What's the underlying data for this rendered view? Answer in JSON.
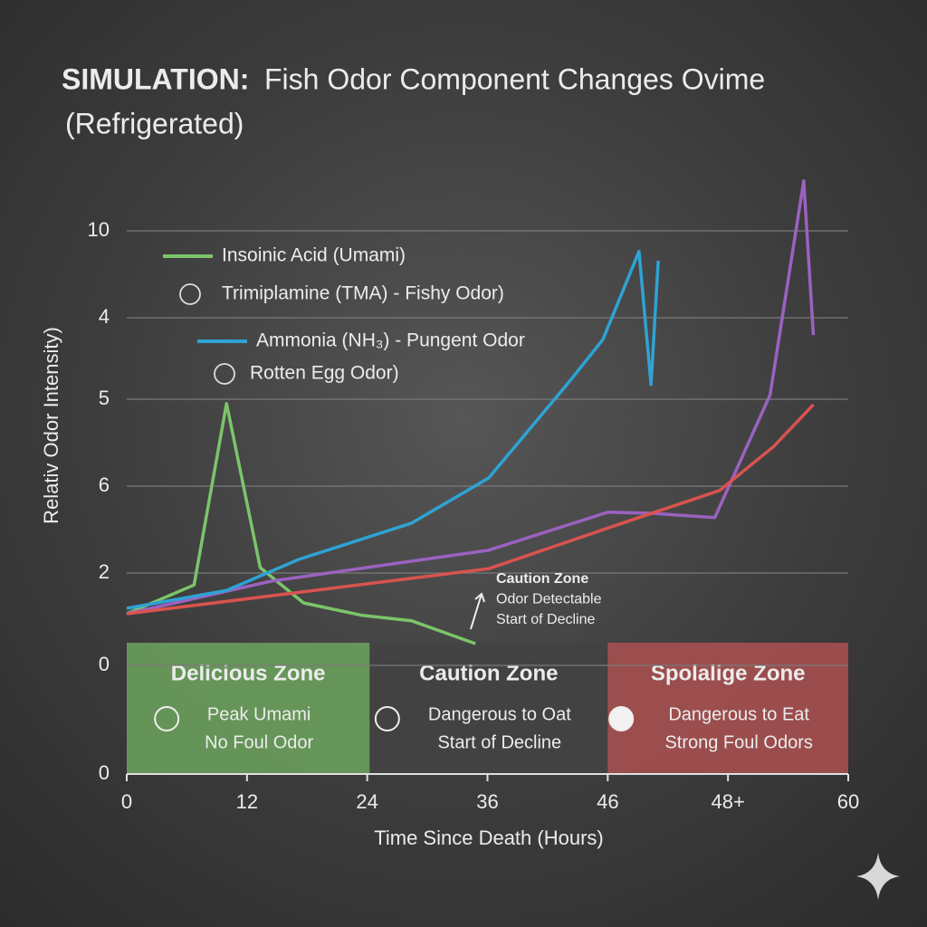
{
  "chart_data": {
    "type": "line",
    "title_lead": "SIMULATION:",
    "title": "Fish Odor Component Changes Ovime",
    "subtitle": "(Refrigerated)",
    "x_label": "Time Since Death (Hours)",
    "y_label": "Relativ Odor Intensity)",
    "xlim": [
      0,
      60
    ],
    "xticks": [
      0,
      {
        "value": 10,
        "label": "12"
      },
      {
        "value": 20,
        "label": "24"
      },
      {
        "value": 30,
        "label": "36"
      },
      {
        "value": 40,
        "label": "46"
      },
      {
        "value": 50,
        "label": "48+"
      },
      60
    ],
    "ylim": [
      0,
      10
    ],
    "yticks": [
      0,
      {
        "value": 2,
        "label": "0"
      },
      {
        "value": 3.7,
        "label": "2"
      },
      {
        "value": 5.3,
        "label": "6"
      },
      {
        "value": 6.9,
        "label": "5"
      },
      {
        "value": 8.4,
        "label": "4"
      },
      10
    ],
    "grid": true,
    "series": [
      {
        "name": "Insoinic Acid (Umami)",
        "color": "#7cc46a",
        "x": [
          0,
          5.6,
          8.3,
          11.1,
          14.7,
          19.6,
          23.7,
          29.0
        ],
        "values": [
          2.95,
          3.48,
          6.82,
          3.8,
          3.15,
          2.92,
          2.82,
          2.4
        ]
      },
      {
        "name": "Trimiplamine (TMA) - Fishy Odor)",
        "color": "#9b62c0",
        "x": [
          0,
          12.0,
          30.1,
          40.0,
          43.7,
          48.9,
          53.5,
          56.3,
          57.1
        ],
        "values": [
          2.95,
          3.55,
          4.12,
          4.82,
          4.8,
          4.72,
          6.98,
          10.92,
          8.08
        ]
      },
      {
        "name": "Ammonia (NH₃) - Pungent Odor",
        "color": "#2ea3d4",
        "x": [
          0,
          8.3,
          14.3,
          23.7,
          30.1,
          36.9,
          39.6,
          42.6,
          43.6,
          44.2
        ],
        "values": [
          3.05,
          3.38,
          3.95,
          4.62,
          5.45,
          7.25,
          8.0,
          9.62,
          7.17,
          9.45
        ]
      },
      {
        "name": "Rotten Egg Odor)",
        "color": "#d9534f",
        "x": [
          0,
          30.1,
          40.7,
          49.3,
          53.8,
          57.1
        ],
        "values": [
          2.95,
          3.78,
          4.58,
          5.22,
          6.03,
          6.8
        ]
      }
    ],
    "zones": [
      {
        "label": "Delicious Zone",
        "lines": [
          "Peak Umami",
          "No Foul Odor"
        ],
        "color": "#6a9e5c",
        "start": 0,
        "end": 20.2
      },
      {
        "label": "Caution Zone",
        "lines": [
          "Dangerous to Oat",
          "Start of Decline"
        ],
        "color": "#434343",
        "start": 20.2,
        "end": 40
      },
      {
        "label": "Spolalige Zone",
        "lines": [
          "Dangerous to Eat",
          "Strong Foul Odors"
        ],
        "color": "#a65050",
        "start": 40,
        "end": 60
      }
    ],
    "annotation": [
      "Caution Zone",
      "Odor Detectable",
      "Start of Decline"
    ]
  }
}
